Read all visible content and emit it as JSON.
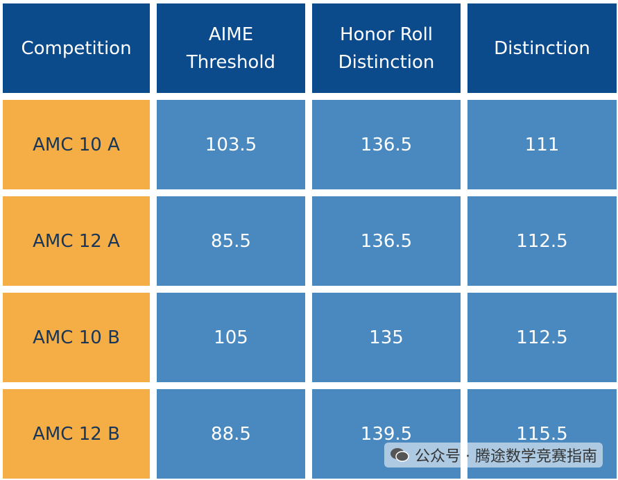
{
  "table": {
    "header": [
      "Competition",
      "AIME Threshold",
      "Honor Roll Distinction",
      "Distinction"
    ],
    "rows": [
      [
        "AMC 10 A",
        103.5,
        136.5,
        111
      ],
      [
        "AMC 12 A",
        85.5,
        136.5,
        112.5
      ],
      [
        "AMC 10 B",
        105,
        135,
        112.5
      ],
      [
        "AMC 12 B",
        88.5,
        139.5,
        115.5
      ]
    ]
  },
  "watermark": "公众号 · 腾途数学竞赛指南"
}
